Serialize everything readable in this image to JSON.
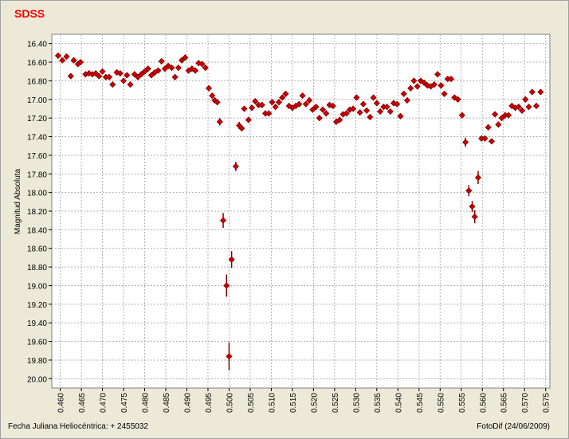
{
  "chart_data": {
    "type": "scatter",
    "title": "SDSS",
    "y_label": "Magnitud Absoluta",
    "x_label": "Fecha Juliana Heliocéntrica:  + 2455032",
    "credit": "FotoDif (24/06/2009)",
    "color": "#cc0000",
    "error_color": "#800000",
    "grid": true,
    "xlim": [
      0.458,
      0.576
    ],
    "ylim": [
      20.1,
      16.3
    ],
    "xticks": [
      {
        "value": 0.46,
        "label": "0.460"
      },
      {
        "value": 0.465,
        "label": "0.465"
      },
      {
        "value": 0.47,
        "label": "0.470"
      },
      {
        "value": 0.475,
        "label": "0.475"
      },
      {
        "value": 0.48,
        "label": "0.480"
      },
      {
        "value": 0.485,
        "label": "0.485"
      },
      {
        "value": 0.49,
        "label": "0.490"
      },
      {
        "value": 0.495,
        "label": "0.495"
      },
      {
        "value": 0.5,
        "label": "0.500"
      },
      {
        "value": 0.505,
        "label": "0.505"
      },
      {
        "value": 0.51,
        "label": "0.510"
      },
      {
        "value": 0.515,
        "label": "0.515"
      },
      {
        "value": 0.52,
        "label": "0.520"
      },
      {
        "value": 0.525,
        "label": "0.525"
      },
      {
        "value": 0.53,
        "label": "0.530"
      },
      {
        "value": 0.535,
        "label": "0.535"
      },
      {
        "value": 0.54,
        "label": "0.540"
      },
      {
        "value": 0.545,
        "label": "0.545"
      },
      {
        "value": 0.55,
        "label": "0.550"
      },
      {
        "value": 0.555,
        "label": "0.555"
      },
      {
        "value": 0.56,
        "label": "0.560"
      },
      {
        "value": 0.565,
        "label": "0.565"
      },
      {
        "value": 0.57,
        "label": "0.570"
      },
      {
        "value": 0.575,
        "label": "0.575"
      }
    ],
    "yticks": [
      {
        "value": 16.4,
        "label": "16.40"
      },
      {
        "value": 16.6,
        "label": "16.60"
      },
      {
        "value": 16.8,
        "label": "16.80"
      },
      {
        "value": 17.0,
        "label": "17.00"
      },
      {
        "value": 17.2,
        "label": "17.20"
      },
      {
        "value": 17.4,
        "label": "17.40"
      },
      {
        "value": 17.6,
        "label": "17.60"
      },
      {
        "value": 17.8,
        "label": "17.80"
      },
      {
        "value": 18.0,
        "label": "18.00"
      },
      {
        "value": 18.2,
        "label": "18.20"
      },
      {
        "value": 18.4,
        "label": "18.40"
      },
      {
        "value": 18.6,
        "label": "18.60"
      },
      {
        "value": 18.8,
        "label": "18.80"
      },
      {
        "value": 19.0,
        "label": "19.00"
      },
      {
        "value": 19.2,
        "label": "19.20"
      },
      {
        "value": 19.4,
        "label": "19.40"
      },
      {
        "value": 19.6,
        "label": "19.60"
      },
      {
        "value": 19.8,
        "label": "19.80"
      },
      {
        "value": 20.0,
        "label": "20.00"
      }
    ],
    "x": [
      0.4595,
      0.4605,
      0.4615,
      0.4625,
      0.4632,
      0.4642,
      0.4648,
      0.466,
      0.4668,
      0.4676,
      0.4684,
      0.4692,
      0.47,
      0.4708,
      0.4716,
      0.4724,
      0.4734,
      0.4742,
      0.475,
      0.4758,
      0.4766,
      0.4776,
      0.4784,
      0.4792,
      0.48,
      0.4808,
      0.4816,
      0.4824,
      0.4832,
      0.484,
      0.4848,
      0.4856,
      0.4864,
      0.4872,
      0.488,
      0.4888,
      0.4896,
      0.4904,
      0.4912,
      0.492,
      0.4928,
      0.4936,
      0.4944,
      0.4952,
      0.496,
      0.4966,
      0.4972,
      0.4978,
      0.4986,
      0.4994,
      0.5,
      0.5006,
      0.5016,
      0.5024,
      0.503,
      0.5036,
      0.5046,
      0.5054,
      0.5062,
      0.507,
      0.5078,
      0.5086,
      0.5094,
      0.5102,
      0.511,
      0.5118,
      0.5126,
      0.5134,
      0.5142,
      0.515,
      0.5158,
      0.5166,
      0.5174,
      0.5182,
      0.519,
      0.5198,
      0.5206,
      0.5214,
      0.5222,
      0.523,
      0.5238,
      0.5246,
      0.5254,
      0.5262,
      0.527,
      0.5278,
      0.5286,
      0.5294,
      0.5302,
      0.531,
      0.5318,
      0.5326,
      0.5334,
      0.5342,
      0.535,
      0.5358,
      0.5366,
      0.5374,
      0.5382,
      0.539,
      0.5398,
      0.5406,
      0.5414,
      0.5422,
      0.543,
      0.5438,
      0.5446,
      0.5454,
      0.5462,
      0.547,
      0.5478,
      0.5486,
      0.5494,
      0.5502,
      0.551,
      0.5518,
      0.5526,
      0.5534,
      0.5542,
      0.5552,
      0.556,
      0.5568,
      0.5576,
      0.5582,
      0.559,
      0.5598,
      0.5606,
      0.5614,
      0.5622,
      0.563,
      0.5638,
      0.5646,
      0.5654,
      0.5662,
      0.567,
      0.5678,
      0.5686,
      0.5694,
      0.5702,
      0.571,
      0.5718,
      0.5728,
      0.5738
    ],
    "values": [
      16.53,
      16.58,
      16.54,
      16.75,
      16.58,
      16.62,
      16.6,
      16.73,
      16.72,
      16.73,
      16.72,
      16.75,
      16.7,
      16.76,
      16.76,
      16.84,
      16.71,
      16.72,
      16.8,
      16.74,
      16.84,
      16.73,
      16.76,
      16.73,
      16.7,
      16.67,
      16.74,
      16.71,
      16.69,
      16.59,
      16.67,
      16.64,
      16.66,
      16.76,
      16.66,
      16.58,
      16.55,
      16.69,
      16.67,
      16.69,
      16.61,
      16.62,
      16.66,
      16.88,
      16.96,
      17.01,
      17.03,
      17.24,
      18.3,
      19.0,
      19.76,
      18.72,
      17.72,
      17.28,
      17.31,
      17.1,
      17.22,
      17.09,
      17.02,
      17.06,
      17.06,
      17.15,
      17.15,
      17.03,
      17.08,
      17.03,
      16.98,
      16.94,
      17.07,
      17.09,
      17.07,
      17.05,
      16.96,
      17.05,
      17.01,
      17.11,
      17.08,
      17.2,
      17.11,
      17.15,
      17.06,
      17.07,
      17.24,
      17.22,
      17.16,
      17.15,
      17.11,
      17.1,
      16.98,
      17.14,
      17.05,
      17.12,
      17.19,
      16.98,
      17.04,
      17.13,
      17.08,
      17.08,
      17.13,
      17.04,
      17.05,
      17.18,
      16.94,
      17.01,
      16.88,
      16.8,
      16.86,
      16.8,
      16.82,
      16.85,
      16.86,
      16.84,
      16.73,
      16.85,
      16.94,
      16.78,
      16.78,
      16.98,
      17.0,
      17.17,
      17.46,
      17.98,
      18.15,
      18.26,
      17.84,
      17.42,
      17.42,
      17.3,
      17.45,
      17.16,
      17.27,
      17.2,
      17.17,
      17.17,
      17.07,
      17.09,
      17.08,
      17.12,
      17.0,
      17.08,
      16.92,
      17.07,
      16.92
    ],
    "errors": [
      0.03,
      0.03,
      0.03,
      0.03,
      0.03,
      0.03,
      0.03,
      0.03,
      0.03,
      0.03,
      0.03,
      0.03,
      0.03,
      0.03,
      0.03,
      0.03,
      0.03,
      0.03,
      0.03,
      0.03,
      0.03,
      0.03,
      0.03,
      0.03,
      0.03,
      0.03,
      0.03,
      0.03,
      0.03,
      0.03,
      0.03,
      0.03,
      0.03,
      0.03,
      0.03,
      0.03,
      0.03,
      0.03,
      0.03,
      0.03,
      0.03,
      0.03,
      0.03,
      0.03,
      0.03,
      0.03,
      0.03,
      0.04,
      0.08,
      0.12,
      0.15,
      0.09,
      0.05,
      0.04,
      0.03,
      0.03,
      0.03,
      0.03,
      0.03,
      0.03,
      0.03,
      0.03,
      0.03,
      0.03,
      0.03,
      0.03,
      0.03,
      0.03,
      0.03,
      0.03,
      0.03,
      0.03,
      0.03,
      0.03,
      0.03,
      0.03,
      0.03,
      0.03,
      0.03,
      0.03,
      0.03,
      0.03,
      0.03,
      0.03,
      0.03,
      0.03,
      0.03,
      0.03,
      0.03,
      0.03,
      0.03,
      0.03,
      0.03,
      0.03,
      0.03,
      0.03,
      0.03,
      0.03,
      0.03,
      0.03,
      0.03,
      0.03,
      0.03,
      0.03,
      0.03,
      0.03,
      0.03,
      0.03,
      0.03,
      0.03,
      0.03,
      0.03,
      0.03,
      0.03,
      0.03,
      0.03,
      0.03,
      0.03,
      0.03,
      0.03,
      0.05,
      0.06,
      0.06,
      0.07,
      0.07,
      0.03,
      0.03,
      0.03,
      0.03,
      0.03,
      0.03,
      0.03,
      0.03,
      0.03,
      0.03,
      0.03,
      0.03,
      0.03,
      0.03,
      0.03,
      0.03,
      0.03,
      0.03
    ]
  }
}
